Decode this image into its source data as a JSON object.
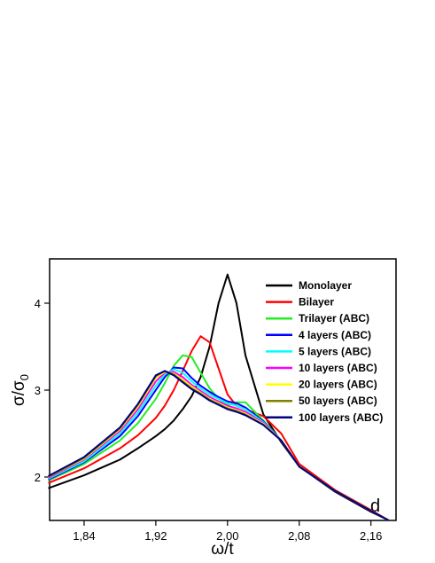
{
  "chart_data": {
    "type": "line",
    "x_label": "ω/t",
    "y_label": {
      "main": "σ/σ",
      "sub": "0"
    },
    "annotation": "d",
    "xlim": [
      1.8015,
      2.188
    ],
    "ylim": [
      1.5,
      4.51
    ],
    "xticks": [
      {
        "value": 1.84,
        "label": "1,84"
      },
      {
        "value": 1.92,
        "label": "1,92"
      },
      {
        "value": 2.0,
        "label": "2,00"
      },
      {
        "value": 2.08,
        "label": "2,08"
      },
      {
        "value": 2.16,
        "label": "2,16"
      }
    ],
    "yticks": [
      2,
      3,
      4
    ],
    "legend": "top-right",
    "x": [
      1.8,
      1.84,
      1.88,
      1.9,
      1.92,
      1.93,
      1.94,
      1.95,
      1.96,
      1.97,
      1.98,
      1.99,
      2.0,
      2.01,
      2.02,
      2.04,
      2.06,
      2.08,
      2.12,
      2.16,
      2.18
    ],
    "series": [
      {
        "name": "Monolayer",
        "color": "#000000",
        "values": [
          1.87,
          2.02,
          2.2,
          2.33,
          2.47,
          2.55,
          2.65,
          2.78,
          2.93,
          3.15,
          3.5,
          4.0,
          4.33,
          4.0,
          3.4,
          2.72,
          2.4,
          2.12,
          1.83,
          1.6,
          1.5
        ]
      },
      {
        "name": "Bilayer",
        "color": "#ff0000",
        "values": [
          1.93,
          2.1,
          2.33,
          2.48,
          2.68,
          2.82,
          3.0,
          3.22,
          3.45,
          3.62,
          3.55,
          3.25,
          2.95,
          2.82,
          2.78,
          2.7,
          2.5,
          2.15,
          1.85,
          1.62,
          1.5
        ]
      },
      {
        "name": "Trilayer (ABC)",
        "color": "#22ee22",
        "values": [
          1.96,
          2.15,
          2.42,
          2.62,
          2.9,
          3.08,
          3.28,
          3.4,
          3.38,
          3.2,
          3.02,
          2.9,
          2.83,
          2.86,
          2.86,
          2.65,
          2.42,
          2.12,
          1.84,
          1.61,
          1.5
        ]
      },
      {
        "name": "4 layers (ABC)",
        "color": "#0000ff",
        "values": [
          1.97,
          2.17,
          2.47,
          2.7,
          3.0,
          3.15,
          3.26,
          3.25,
          3.14,
          3.05,
          2.98,
          2.92,
          2.87,
          2.85,
          2.8,
          2.64,
          2.42,
          2.12,
          1.84,
          1.61,
          1.5
        ]
      },
      {
        "name": "5 layers (ABC)",
        "color": "#00ffff",
        "values": [
          1.98,
          2.18,
          2.5,
          2.74,
          3.05,
          3.18,
          3.24,
          3.2,
          3.1,
          3.02,
          2.95,
          2.9,
          2.85,
          2.82,
          2.78,
          2.63,
          2.42,
          2.12,
          1.84,
          1.61,
          1.5
        ]
      },
      {
        "name": "10 layers (ABC)",
        "color": "#ff00ff",
        "values": [
          1.99,
          2.2,
          2.53,
          2.78,
          3.1,
          3.2,
          3.21,
          3.15,
          3.06,
          2.99,
          2.92,
          2.87,
          2.82,
          2.79,
          2.75,
          2.62,
          2.42,
          2.12,
          1.84,
          1.61,
          1.5
        ]
      },
      {
        "name": "20 layers (ABC)",
        "color": "#ffff00",
        "values": [
          2.0,
          2.21,
          2.55,
          2.81,
          3.14,
          3.21,
          3.19,
          3.12,
          3.04,
          2.97,
          2.9,
          2.85,
          2.8,
          2.77,
          2.73,
          2.61,
          2.42,
          2.12,
          1.84,
          1.61,
          1.5
        ]
      },
      {
        "name": "50 layers (ABC)",
        "color": "#808000",
        "values": [
          2.0,
          2.22,
          2.56,
          2.83,
          3.16,
          3.22,
          3.18,
          3.1,
          3.02,
          2.96,
          2.89,
          2.84,
          2.79,
          2.76,
          2.72,
          2.6,
          2.42,
          2.12,
          1.84,
          1.61,
          1.5
        ]
      },
      {
        "name": "100 layers (ABC)",
        "color": "#000080",
        "values": [
          2.01,
          2.23,
          2.57,
          2.84,
          3.17,
          3.22,
          3.17,
          3.09,
          3.01,
          2.95,
          2.88,
          2.83,
          2.78,
          2.75,
          2.71,
          2.6,
          2.42,
          2.12,
          1.84,
          1.61,
          1.5
        ]
      }
    ]
  }
}
